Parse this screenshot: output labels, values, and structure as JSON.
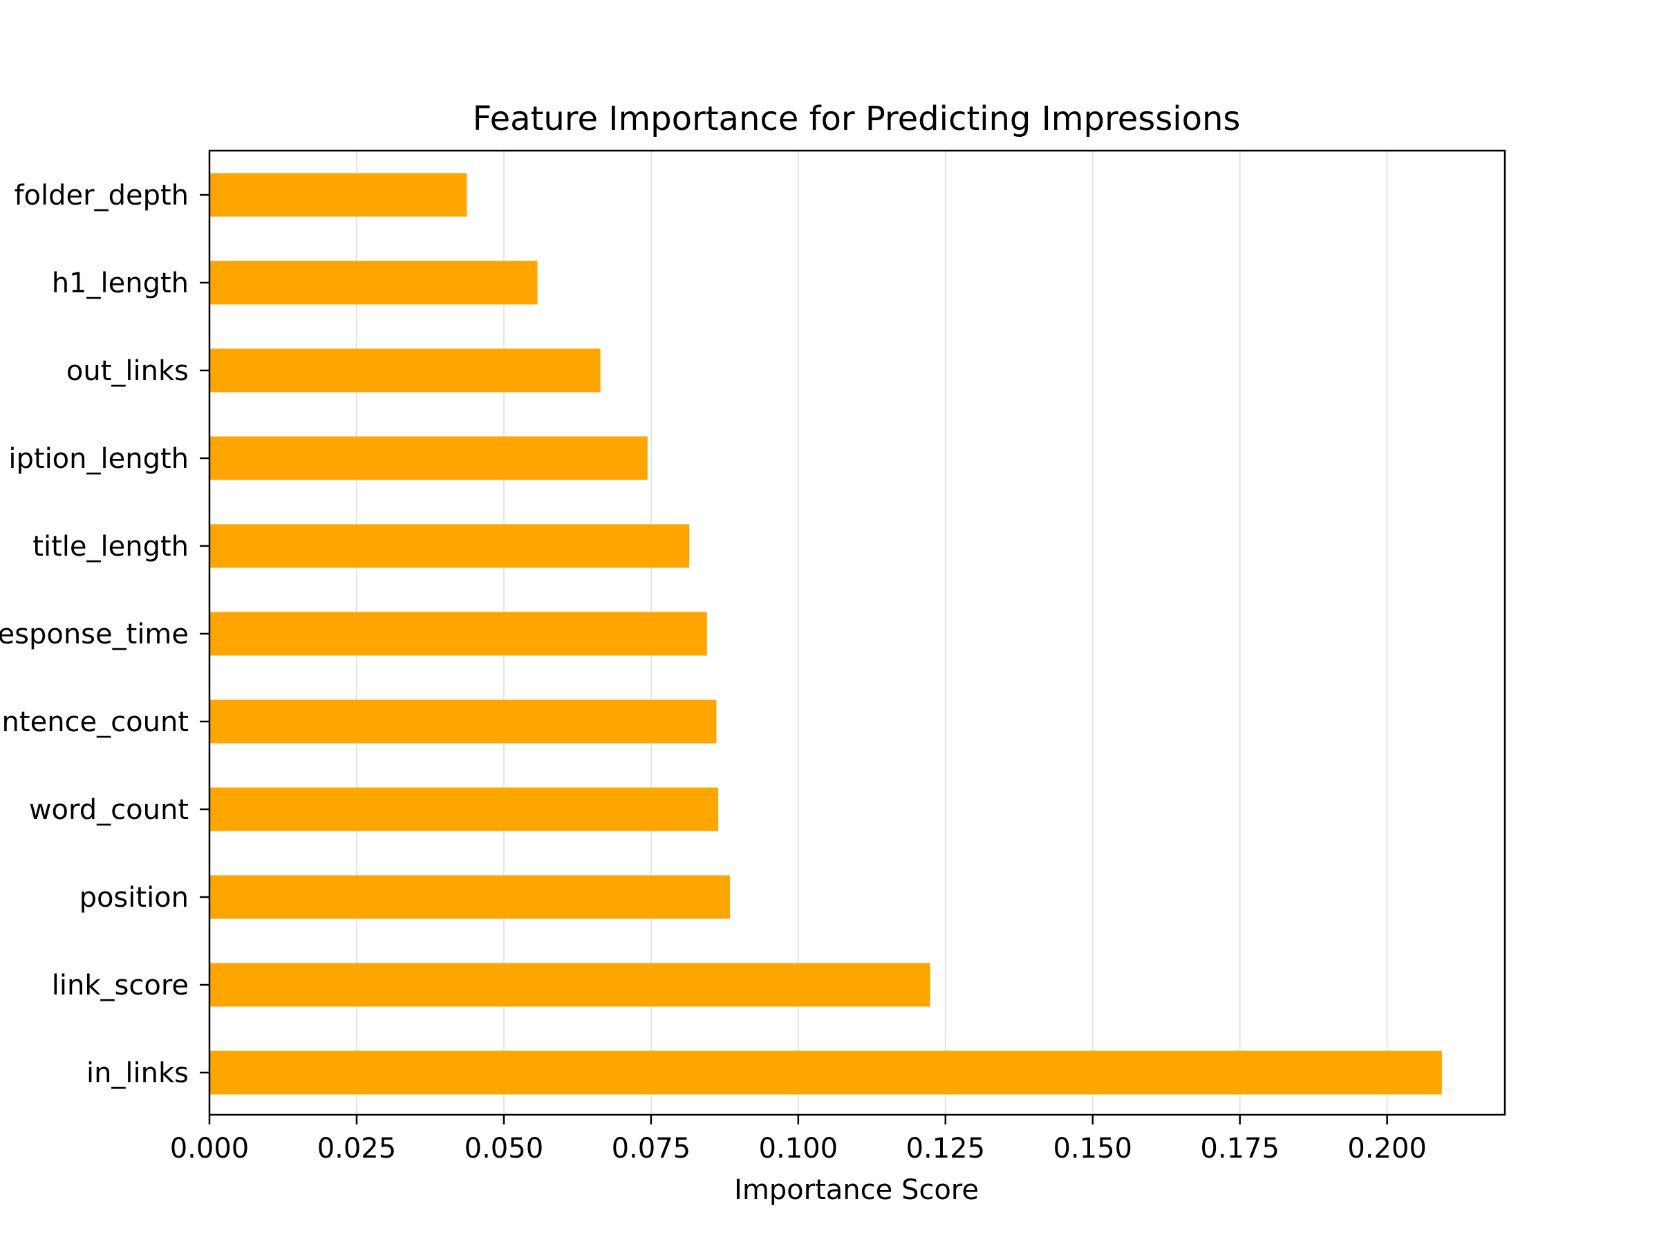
{
  "chart_data": {
    "type": "bar",
    "orientation": "horizontal",
    "title": "Feature Importance for Predicting Impressions",
    "xlabel": "Importance Score",
    "ylabel": "",
    "xlim": [
      0,
      0.22
    ],
    "x_ticks": [
      "0.000",
      "0.025",
      "0.050",
      "0.075",
      "0.100",
      "0.125",
      "0.150",
      "0.175",
      "0.200"
    ],
    "categories": [
      "folder_depth",
      "h1_length",
      "out_links",
      "iption_length",
      "title_length",
      "esponse_time",
      "ntence_count",
      "word_count",
      "position",
      "link_score",
      "in_links"
    ],
    "values": [
      0.0437,
      0.0557,
      0.0664,
      0.0744,
      0.0815,
      0.0845,
      0.0861,
      0.0864,
      0.0884,
      0.1224,
      0.2093
    ],
    "bar_color": "#FFA500",
    "grid": "vertical",
    "grid_color": "#e5e5e5"
  }
}
